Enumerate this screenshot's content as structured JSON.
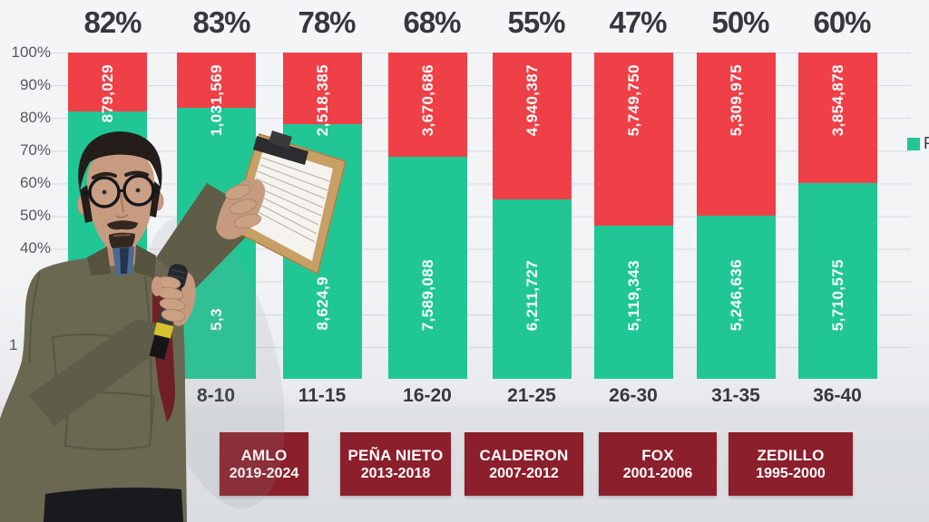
{
  "colors": {
    "green": "#20c795",
    "red": "#ee4046",
    "maroon": "#8b1f2b",
    "ink": "#35383e",
    "tick": "#54585e"
  },
  "legend": {
    "swatch_color": "#20c795",
    "label": "P"
  },
  "presidents": [
    {
      "name": "AMLO",
      "years": "2019-2024"
    },
    {
      "name": "PEÑA NIETO",
      "years": "2013-2018"
    },
    {
      "name": "CALDERON",
      "years": "2007-2012"
    },
    {
      "name": "FOX",
      "years": "2001-2006"
    },
    {
      "name": "ZEDILLO",
      "years": "1995-2000"
    }
  ],
  "chart_data": {
    "type": "bar",
    "stacked": true,
    "categories": [
      "",
      "8-10",
      "11-15",
      "16-20",
      "21-25",
      "26-30",
      "31-35",
      "36-40"
    ],
    "top_labels": [
      "82%",
      "83%",
      "78%",
      "68%",
      "55%",
      "47%",
      "50%",
      "60%"
    ],
    "series": [
      {
        "name": "green-bottom-segment",
        "color": "#20c795",
        "percent": [
          82,
          83,
          78,
          68,
          55,
          47,
          50,
          60
        ],
        "value_labels": [
          "",
          "5,3",
          "8,624,9",
          "7,589,088",
          "6,211,727",
          "5,119,343",
          "5,246,636",
          "5,710,575"
        ],
        "values": [
          null,
          null,
          null,
          7589088,
          6211727,
          5119343,
          5246636,
          5710575
        ]
      },
      {
        "name": "red-top-segment",
        "color": "#ee4046",
        "percent": [
          18,
          17,
          22,
          32,
          45,
          53,
          50,
          40
        ],
        "value_labels": [
          "879,029",
          "1,031,569",
          "2,518,385",
          "3,670,686",
          "4,940,387",
          "5,749,750",
          "5,309,975",
          "3,854,878"
        ],
        "values": [
          879029,
          1031569,
          2518385,
          3670686,
          4940387,
          5749750,
          5309975,
          3854878
        ]
      }
    ],
    "y_ticks": [
      "100%",
      "90%",
      "80%",
      "70%",
      "60%",
      "50%",
      "40%"
    ],
    "y_tick_partial": "1",
    "axis_range": [
      0,
      100
    ],
    "grid": true,
    "legend_entries": [
      "P"
    ]
  }
}
